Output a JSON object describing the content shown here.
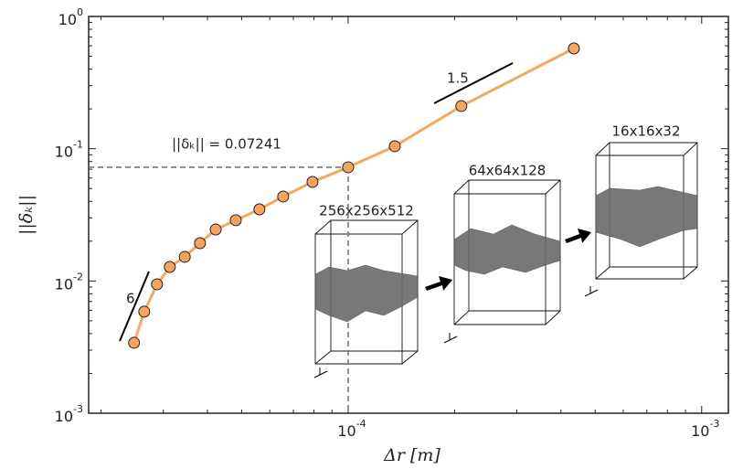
{
  "chart_data": {
    "type": "line",
    "xlabel": "Δr    [m]",
    "ylabel": "||δₖ||",
    "x": [
      2.48e-05,
      2.65e-05,
      2.88e-05,
      3.13e-05,
      3.45e-05,
      3.81e-05,
      4.22e-05,
      4.81e-05,
      5.61e-05,
      6.55e-05,
      7.93e-05,
      0.0001,
      0.0001355,
      0.000209,
      0.000435
    ],
    "series": [
      {
        "color": "#f5a95c",
        "marker_color": "#f7a35c",
        "values": [
          0.00341,
          0.00586,
          0.00944,
          0.01277,
          0.01522,
          0.0193,
          0.0245,
          0.0288,
          0.0348,
          0.0435,
          0.0561,
          0.07241,
          0.1044,
          0.21,
          0.573
        ]
      }
    ],
    "xlog": true,
    "ylog": true,
    "minor_ticks": true,
    "xlim": [
      1.845e-05,
      0.00119
    ],
    "ylim": [
      0.001,
      1
    ],
    "xticks": [
      {
        "value": 0.0001,
        "label": "10",
        "exponent": "-4"
      },
      {
        "value": 0.001,
        "label": "10",
        "exponent": "-3"
      }
    ],
    "yticks": [
      {
        "value": 0.001,
        "label": "10",
        "exponent": "-3"
      },
      {
        "value": 0.01,
        "label": "10",
        "exponent": "-2"
      },
      {
        "value": 0.1,
        "label": "10",
        "exponent": "-1"
      },
      {
        "value": 1,
        "label": "10",
        "exponent": "0"
      }
    ],
    "annotations": [
      "||δₖ|| = 0.07241",
      "6",
      "1.5"
    ],
    "insets": [
      "256x256x512",
      "64x64x128",
      "16x16x32"
    ]
  }
}
